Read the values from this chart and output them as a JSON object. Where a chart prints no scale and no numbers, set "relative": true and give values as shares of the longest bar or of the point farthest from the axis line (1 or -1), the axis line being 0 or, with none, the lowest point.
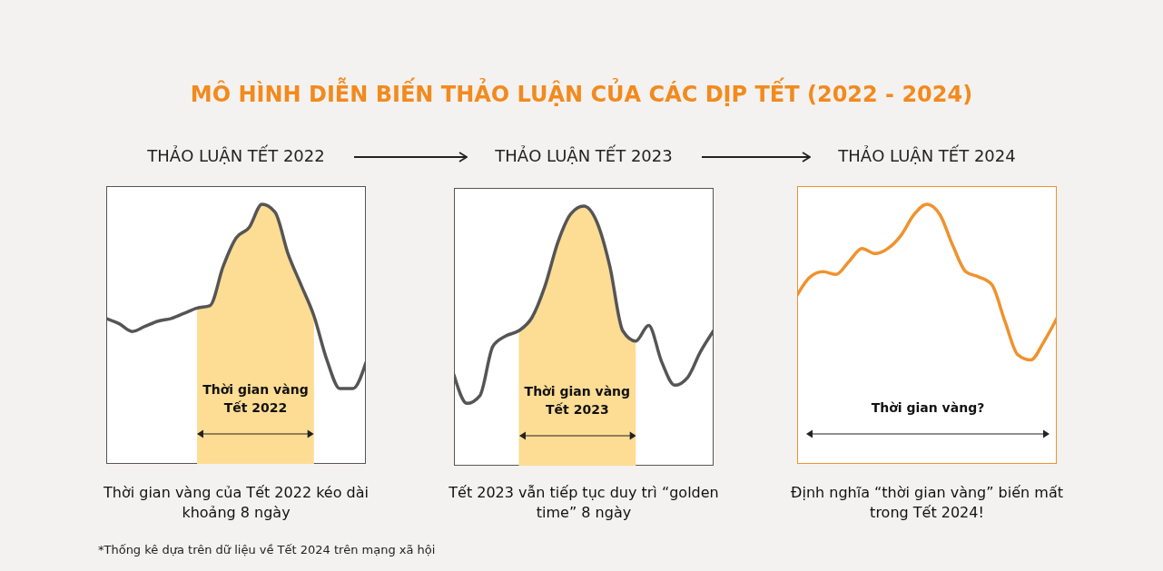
{
  "chart_data": [
    {
      "type": "line",
      "title": "MÔ HÌNH DIỄN BIẾN THẢO LUẬN CỦA CÁC DỊP TẾT (2022 - 2024)",
      "subtitle": "THẢO LUẬN TẾT 2022",
      "relative": true,
      "categories": [
        null,
        null,
        null,
        null,
        null,
        null,
        null,
        null,
        null,
        null,
        null,
        null,
        null,
        null,
        null,
        null,
        null,
        null,
        null,
        null,
        null
      ],
      "series": [
        {
          "type": "area",
          "color": "#fddc94",
          "values": [
            null,
            null,
            null,
            null,
            null,
            null,
            null,
            0.6,
            0.61,
            0.76,
            0.87,
            0.91,
            1,
            0.97,
            0.81,
            0.69,
            0.57,
            null,
            null,
            null,
            null
          ]
        },
        {
          "type": "line",
          "color": "#555555",
          "values": [
            0.56,
            0.54,
            0.51,
            0.53,
            0.55,
            0.56,
            0.58,
            0.6,
            0.61,
            0.76,
            0.87,
            0.91,
            1,
            0.97,
            0.81,
            0.69,
            0.57,
            0.4,
            0.29,
            0.29,
            0.39
          ]
        }
      ],
      "annotations": [
        "Thời gian vàng Tết 2022",
        "Thời gian vàng của Tết 2022 kéo dài khoảng 8 ngày",
        "*Thống kê dựa trên dữ liệu về Tết 2024 trên mạng xã hội"
      ]
    },
    {
      "type": "line",
      "subtitle": "THẢO LUẬN TẾT 2023",
      "relative": true,
      "categories": [
        null,
        null,
        null,
        null,
        null,
        null,
        null,
        null,
        null,
        null,
        null,
        null,
        null,
        null,
        null,
        null,
        null,
        null,
        null,
        null,
        null
      ],
      "series": [
        {
          "type": "area",
          "color": "#fddc94",
          "values": [
            null,
            null,
            null,
            null,
            null,
            0.52,
            0.57,
            0.69,
            0.86,
            0.97,
            1,
            0.94,
            0.77,
            0.52,
            0.48,
            null,
            null,
            null,
            null,
            null,
            null
          ]
        },
        {
          "type": "line",
          "color": "#555555",
          "values": [
            0.35,
            0.24,
            0.27,
            0.46,
            0.5,
            0.52,
            0.57,
            0.69,
            0.86,
            0.97,
            1,
            0.94,
            0.77,
            0.52,
            0.48,
            0.54,
            0.4,
            0.31,
            0.34,
            0.44,
            0.52
          ]
        }
      ],
      "annotations": [
        "Thời gian vàng Tết 2023",
        "Tết 2023 vẫn tiếp tục duy trì “golden time” 8 ngày"
      ]
    },
    {
      "type": "line",
      "subtitle": "THẢO LUẬN TẾT 2024",
      "relative": true,
      "categories": [
        null,
        null,
        null,
        null,
        null,
        null,
        null,
        null,
        null,
        null,
        null,
        null,
        null,
        null,
        null,
        null,
        null,
        null,
        null,
        null,
        null
      ],
      "series": [
        {
          "type": "line",
          "color": "#f0922e",
          "values": [
            0.65,
            0.72,
            0.74,
            0.73,
            0.78,
            0.83,
            0.81,
            0.83,
            0.88,
            0.96,
            1,
            0.96,
            0.84,
            0.74,
            0.72,
            0.69,
            0.55,
            0.42,
            0.4,
            0.47,
            0.56
          ]
        }
      ],
      "annotations": [
        "Thời gian vàng?",
        "Định nghĩa “thời gian vàng” biến mất trong Tết 2024!"
      ]
    }
  ]
}
